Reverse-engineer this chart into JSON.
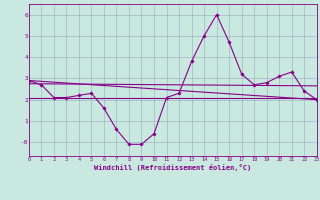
{
  "hours": [
    0,
    1,
    2,
    3,
    4,
    5,
    6,
    7,
    8,
    9,
    10,
    11,
    12,
    13,
    14,
    15,
    16,
    17,
    18,
    19,
    20,
    21,
    22,
    23
  ],
  "windchill": [
    2.9,
    2.7,
    2.1,
    2.1,
    2.2,
    2.3,
    1.6,
    0.6,
    -0.1,
    -0.1,
    0.4,
    2.1,
    2.3,
    3.8,
    5.0,
    6.0,
    4.7,
    3.2,
    2.7,
    2.8,
    3.1,
    3.3,
    2.4,
    2.0
  ],
  "flat_line_y": 2.1,
  "trend1_x": [
    0,
    23
  ],
  "trend1_y": [
    2.9,
    2.0
  ],
  "trend2_x": [
    0,
    23
  ],
  "trend2_y": [
    2.75,
    2.65
  ],
  "bg_color": "#c8e8e0",
  "line_color": "#880088",
  "grid_color": "#99aabb",
  "xlabel": "Windchill (Refroidissement éolien,°C)",
  "ylim": [
    -0.65,
    6.5
  ],
  "xlim": [
    0,
    23
  ],
  "yticks": [
    0,
    1,
    2,
    3,
    4,
    5,
    6
  ],
  "ytick_labels": [
    "-0",
    "1",
    "2",
    "3",
    "4",
    "5",
    "6"
  ],
  "xticks": [
    0,
    1,
    2,
    3,
    4,
    5,
    6,
    7,
    8,
    9,
    10,
    11,
    12,
    13,
    14,
    15,
    16,
    17,
    18,
    19,
    20,
    21,
    22,
    23
  ],
  "marker_style": "D",
  "marker_size": 1.8,
  "line_width": 0.8
}
